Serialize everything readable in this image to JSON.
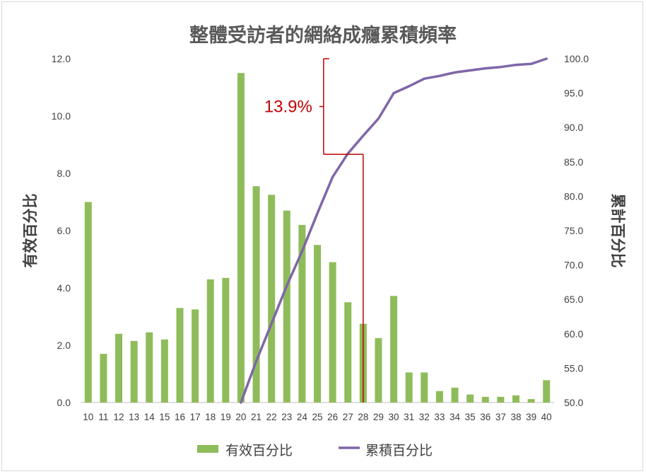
{
  "chart_data": {
    "type": "bar+line",
    "title": "整體受訪者的網絡成癮累積頻率",
    "categories": [
      "10",
      "11",
      "12",
      "13",
      "14",
      "15",
      "16",
      "17",
      "18",
      "19",
      "20",
      "21",
      "22",
      "23",
      "24",
      "25",
      "26",
      "27",
      "28",
      "29",
      "30",
      "31",
      "32",
      "33",
      "34",
      "35",
      "36",
      "37",
      "38",
      "39",
      "40"
    ],
    "series": [
      {
        "name": "有效百分比",
        "type": "bar",
        "axis": "left",
        "color": "#8fbc5a",
        "values": [
          7.0,
          1.7,
          2.4,
          2.15,
          2.45,
          2.2,
          3.3,
          3.25,
          4.3,
          4.35,
          11.5,
          7.55,
          7.25,
          6.7,
          6.2,
          5.5,
          4.9,
          3.5,
          2.75,
          2.25,
          3.72,
          1.05,
          1.05,
          0.4,
          0.52,
          0.28,
          0.2,
          0.2,
          0.25,
          0.12,
          0.78
        ]
      },
      {
        "name": "累積百分比",
        "type": "line",
        "axis": "right",
        "color": "#7f66a8",
        "values": [
          null,
          null,
          null,
          null,
          null,
          null,
          null,
          null,
          null,
          null,
          50.0,
          56.0,
          61.5,
          67.0,
          72.0,
          77.5,
          82.8,
          86.2,
          88.8,
          91.3,
          95.0,
          96.0,
          97.1,
          97.5,
          98.0,
          98.3,
          98.6,
          98.8,
          99.1,
          99.25,
          100.0
        ]
      }
    ],
    "y_left": {
      "label": "有效百分比",
      "min": 0,
      "max": 12,
      "ticks": [
        "0.0",
        "2.0",
        "4.0",
        "6.0",
        "8.0",
        "10.0",
        "12.0"
      ]
    },
    "y_right": {
      "label": "累計百分比",
      "min": 50,
      "max": 100,
      "ticks": [
        "50.0",
        "55.0",
        "60.0",
        "65.0",
        "70.0",
        "75.0",
        "80.0",
        "85.0",
        "90.0",
        "95.0",
        "100.0"
      ]
    },
    "grid": false,
    "legend": {
      "placement": "bottom",
      "items": [
        "有效百分比",
        "累積百分比"
      ]
    },
    "annotation": {
      "text": "13.9%",
      "color": "#c00000",
      "x_category": "28",
      "from_value": 86.1,
      "to_value": 100.0
    }
  }
}
